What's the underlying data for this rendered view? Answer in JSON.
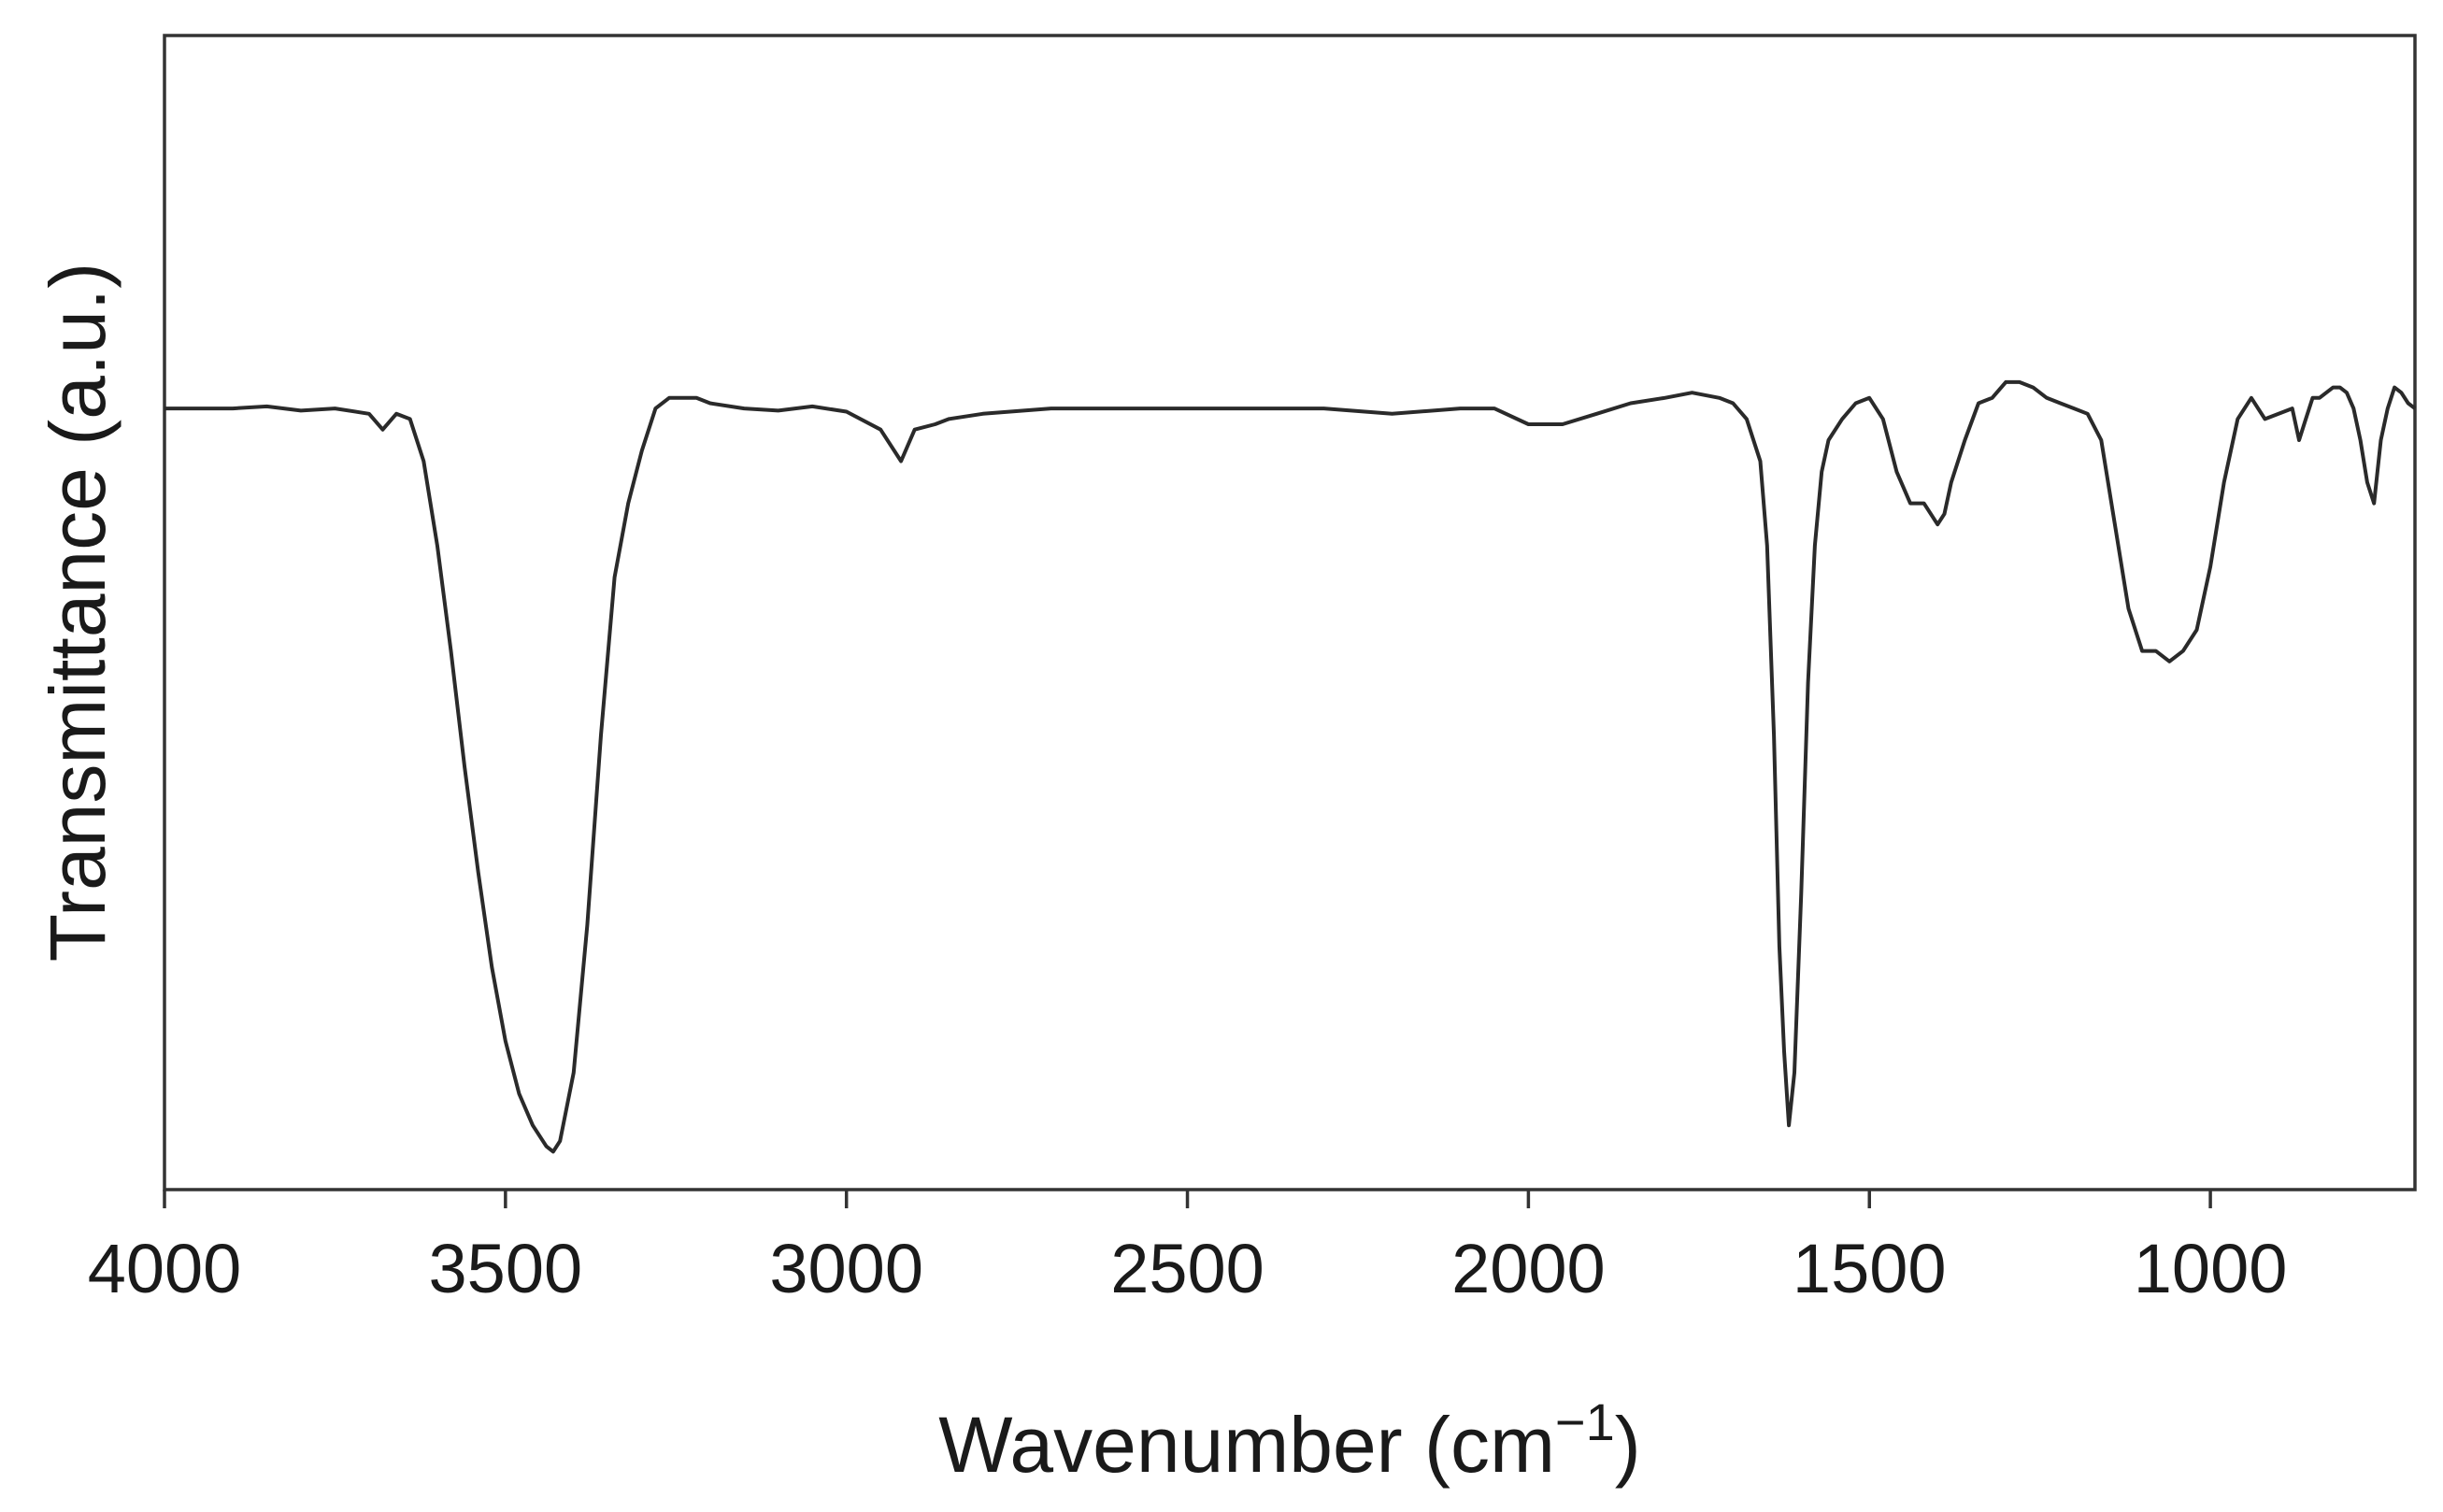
{
  "chart_data": {
    "type": "line",
    "title": "",
    "xlabel": "Wavenumber (cm",
    "xlabel_sup": "−1",
    "xlabel_close": ")",
    "ylabel": "Transmittance (a.u.)",
    "xlim": [
      4000,
      700
    ],
    "x_reversed": true,
    "ylim": [
      0,
      1
    ],
    "y_ticks_shown": false,
    "grid": false,
    "x_ticks": [
      {
        "value": 4000,
        "label": "4000"
      },
      {
        "value": 3500,
        "label": "3500"
      },
      {
        "value": 3000,
        "label": "3000"
      },
      {
        "value": 2500,
        "label": "2500"
      },
      {
        "value": 2000,
        "label": "2000"
      },
      {
        "value": 1500,
        "label": "1500"
      },
      {
        "value": 1000,
        "label": "1000"
      }
    ],
    "line_color": "#2a2a2a",
    "series": [
      {
        "x": [
          4000,
          3950,
          3900,
          3850,
          3800,
          3750,
          3700,
          3680,
          3660,
          3640,
          3620,
          3600,
          3580,
          3560,
          3540,
          3520,
          3500,
          3480,
          3460,
          3440,
          3430,
          3420,
          3400,
          3380,
          3360,
          3340,
          3320,
          3300,
          3280,
          3260,
          3240,
          3220,
          3200,
          3150,
          3100,
          3050,
          3000,
          2950,
          2920,
          2900,
          2870,
          2850,
          2800,
          2700,
          2600,
          2500,
          2400,
          2300,
          2200,
          2100,
          2050,
          2000,
          1950,
          1900,
          1850,
          1800,
          1760,
          1720,
          1700,
          1680,
          1660,
          1650,
          1640,
          1632,
          1625,
          1618,
          1610,
          1600,
          1590,
          1580,
          1570,
          1560,
          1540,
          1520,
          1500,
          1480,
          1460,
          1440,
          1420,
          1400,
          1390,
          1380,
          1360,
          1340,
          1320,
          1300,
          1280,
          1260,
          1240,
          1220,
          1200,
          1180,
          1160,
          1140,
          1120,
          1100,
          1080,
          1060,
          1040,
          1020,
          1000,
          980,
          960,
          940,
          920,
          900,
          880,
          870,
          860,
          850,
          840,
          820,
          810,
          800,
          790,
          780,
          770,
          760,
          750,
          740,
          730,
          720,
          710,
          700
        ],
        "y": [
          0.71,
          0.71,
          0.71,
          0.712,
          0.708,
          0.71,
          0.705,
          0.69,
          0.705,
          0.7,
          0.66,
          0.58,
          0.48,
          0.37,
          0.27,
          0.18,
          0.11,
          0.06,
          0.03,
          0.01,
          0.005,
          0.015,
          0.08,
          0.22,
          0.4,
          0.55,
          0.62,
          0.67,
          0.71,
          0.72,
          0.72,
          0.72,
          0.715,
          0.71,
          0.708,
          0.712,
          0.707,
          0.69,
          0.66,
          0.69,
          0.695,
          0.7,
          0.705,
          0.71,
          0.71,
          0.71,
          0.71,
          0.71,
          0.705,
          0.71,
          0.71,
          0.695,
          0.695,
          0.705,
          0.715,
          0.72,
          0.725,
          0.72,
          0.715,
          0.7,
          0.66,
          0.58,
          0.4,
          0.2,
          0.1,
          0.03,
          0.08,
          0.25,
          0.45,
          0.58,
          0.65,
          0.68,
          0.7,
          0.715,
          0.72,
          0.7,
          0.65,
          0.62,
          0.62,
          0.6,
          0.61,
          0.64,
          0.68,
          0.715,
          0.72,
          0.735,
          0.735,
          0.73,
          0.72,
          0.715,
          0.71,
          0.705,
          0.68,
          0.6,
          0.52,
          0.48,
          0.48,
          0.47,
          0.48,
          0.5,
          0.56,
          0.64,
          0.7,
          0.72,
          0.7,
          0.705,
          0.71,
          0.68,
          0.7,
          0.72,
          0.72,
          0.73,
          0.73,
          0.725,
          0.71,
          0.68,
          0.64,
          0.62,
          0.68,
          0.71,
          0.73,
          0.725,
          0.715,
          0.71
        ]
      }
    ]
  }
}
